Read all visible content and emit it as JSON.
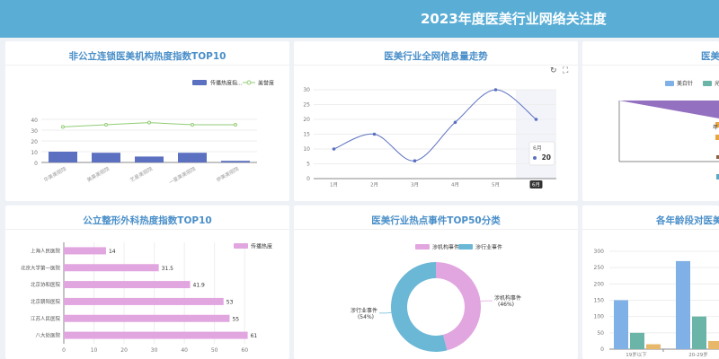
{
  "header": {
    "title": "2023年度医美行业网络关注度"
  },
  "panels": {
    "p1": {
      "title": "非公立连锁医美机构热度指数TOP10"
    },
    "p2": {
      "title": "医美行业全网信息量走势"
    },
    "p3": {
      "title": "医美"
    },
    "p4": {
      "title": "公立整形外科热度指数TOP10"
    },
    "p5": {
      "title": "医美行业热点事件TOP50分类"
    },
    "p6": {
      "title": "各年龄段对医美项"
    }
  },
  "toolbar": {
    "refresh_icon": "refresh-icon",
    "fullscreen_icon": "fullscreen-icon"
  },
  "chart_data": [
    {
      "type": "bar",
      "categories": [
        "华美美丽院",
        "美莱美丽院",
        "艺星美丽院",
        "一星美美丽院",
        "伊美美丽院"
      ],
      "series": [
        {
          "name": "传播热度指...",
          "type": "bar",
          "color": "#5b70c0",
          "values": [
            10,
            9,
            5.5,
            9,
            1.5
          ]
        },
        {
          "name": "美誉度",
          "type": "line",
          "color": "#91cc75",
          "values": [
            33,
            35,
            37,
            35,
            35
          ]
        }
      ],
      "yticks": [
        "0",
        "10",
        "20",
        "30",
        "40"
      ],
      "ylim": [
        0,
        50
      ]
    },
    {
      "type": "line",
      "categories": [
        "1月",
        "2月",
        "3月",
        "4月",
        "5月",
        "6月"
      ],
      "series": [
        {
          "name": "",
          "color": "#5b70c0",
          "values": [
            10,
            15,
            6,
            19,
            30,
            20
          ]
        }
      ],
      "yticks": [
        "0",
        "5",
        "10",
        "15",
        "20",
        "25",
        "30"
      ],
      "ylim": [
        0,
        30
      ],
      "tooltip": {
        "label": "6月",
        "value": "20"
      }
    },
    {
      "type": "area",
      "legend": [
        "美白针",
        "光子"
      ],
      "colors": [
        "#7fb0e6",
        "#6ab5a8",
        "#9370c0",
        "#e8a640"
      ],
      "labels": [
        "年"
      ]
    },
    {
      "type": "bar",
      "orientation": "horizontal",
      "categories": [
        "上海人民医院",
        "北京大学第一医院",
        "北京协和医院",
        "北京朝阳医院",
        "江苏人民医院",
        "八大处医院"
      ],
      "series": [
        {
          "name": "传播热度",
          "color": "#e1a6df",
          "values": [
            14,
            31.5,
            41.9,
            53,
            55,
            61
          ]
        }
      ],
      "xticks": [
        "0",
        "10",
        "20",
        "30",
        "40",
        "50",
        "60"
      ],
      "xlim": [
        0,
        65
      ]
    },
    {
      "type": "pie",
      "series": [
        {
          "name": "涉机构事件",
          "value": 46,
          "label": "涉机构事件",
          "pct": "(46%)",
          "color": "#e1a6df"
        },
        {
          "name": "涉行业事件",
          "value": 54,
          "label": "涉行业事件",
          "pct": "(54%)",
          "color": "#6ab7d6"
        }
      ]
    },
    {
      "type": "bar",
      "categories": [
        "19岁以下",
        "20-29岁"
      ],
      "series": [
        {
          "name": "",
          "color": "#7fb0e6",
          "values": [
            150,
            270
          ]
        },
        {
          "name": "",
          "color": "#6ab5a8",
          "values": [
            50,
            100
          ]
        },
        {
          "name": "",
          "color": "#e8b86a",
          "values": [
            15,
            25
          ]
        }
      ],
      "yticks": [
        "0",
        "50",
        "100",
        "150",
        "200",
        "250",
        "300"
      ],
      "ylim": [
        0,
        300
      ]
    }
  ]
}
